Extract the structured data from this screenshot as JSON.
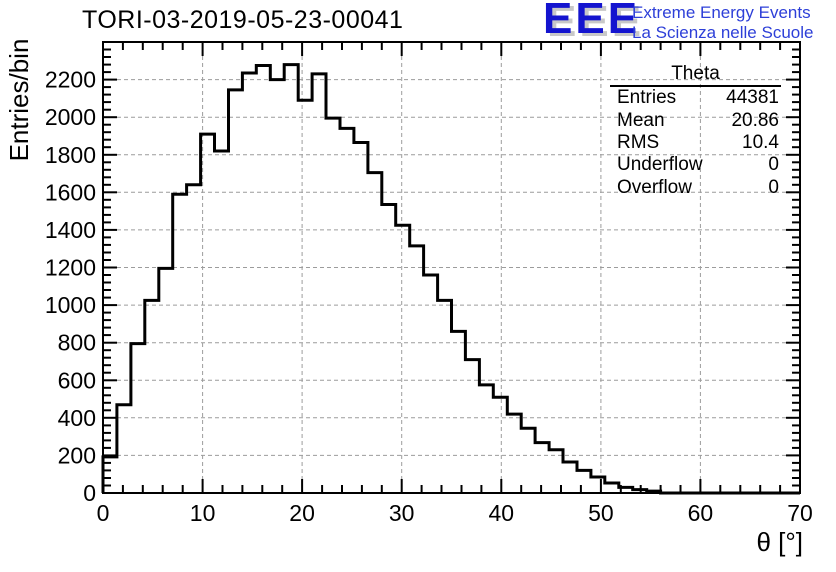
{
  "header": {
    "title": "TORI-03-2019-05-23-00041"
  },
  "logo": {
    "acronym": "EEE",
    "line1": "Extreme Energy Events",
    "line2": "La Scienza nelle Scuole",
    "acronym_color": "#1414cf",
    "text_color": "#2d3fd8"
  },
  "stats": {
    "title": "Theta",
    "rows": [
      {
        "label": "Entries",
        "value": "44381"
      },
      {
        "label": "Mean",
        "value": "20.86"
      },
      {
        "label": "RMS",
        "value": "10.4"
      },
      {
        "label": "Underflow",
        "value": "0"
      },
      {
        "label": "Overflow",
        "value": "0"
      }
    ]
  },
  "chart_data": {
    "type": "bar",
    "subtype": "step-histogram",
    "title": "TORI-03-2019-05-23-00041",
    "xlabel": "θ [°]",
    "ylabel": "Entries/bin",
    "xlim": [
      0,
      70
    ],
    "ylim": [
      0,
      2400
    ],
    "x_major_step": 10,
    "x_minor_per_major": 5,
    "y_major_step": 200,
    "y_minor_per_major": 5,
    "y_label_max": 2200,
    "grid": true,
    "grid_color": "#9c9c9c",
    "line_color": "#000000",
    "bin_start": 0,
    "bin_width": 1.4,
    "values": [
      192,
      470,
      795,
      1025,
      1195,
      1590,
      1640,
      1910,
      1820,
      2145,
      2235,
      2275,
      2200,
      2280,
      2090,
      2230,
      1995,
      1940,
      1865,
      1705,
      1535,
      1425,
      1315,
      1160,
      1025,
      860,
      710,
      575,
      510,
      420,
      345,
      268,
      230,
      165,
      120,
      85,
      53,
      30,
      18,
      10,
      0,
      0,
      0,
      0,
      0,
      0,
      0,
      0,
      0,
      0
    ]
  }
}
